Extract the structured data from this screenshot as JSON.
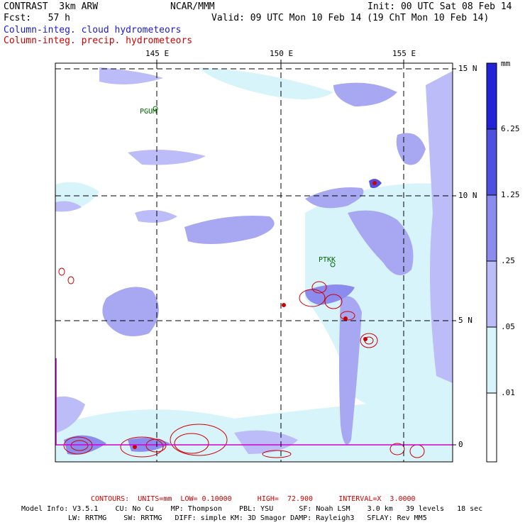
{
  "header": {
    "left_line1": "CONTRAST  3km ARW",
    "left_line2": "Fcst:   57 h",
    "center_line1": "NCAR/MMM",
    "init": "Init: 00 UTC Sat 08 Feb 14",
    "valid": "Valid: 09 UTC Mon 10 Feb 14 (19 ChT Mon 10 Feb 14)",
    "legend_cloud": "Column-integ. cloud hydrometeors",
    "legend_precip": "Column-integ. precip. hydrometeors"
  },
  "map": {
    "lon_labels": [
      "145 E",
      "150 E",
      "155 E"
    ],
    "lat_labels": [
      "15 N",
      "10 N",
      "5 N",
      "0"
    ],
    "stations": [
      {
        "name": "PGUM"
      },
      {
        "name": "PTKK"
      }
    ]
  },
  "colorbar": {
    "unit": "mm",
    "levels": [
      "6.25",
      "1.25",
      ".25",
      ".05",
      ".01"
    ],
    "colors": [
      "#2222d8",
      "#5050e0",
      "#8c8cee",
      "#bcbcf8",
      "#d8f4fb",
      "#ffffff"
    ]
  },
  "footer": {
    "contours": "CONTOURS:  UNITS=mm  LOW= 0.10000      HIGH=  72.900      INTERVAL=X  3.0000",
    "model_line1": "Model Info: V3.5.1    CU: No Cu    MP: Thompson    PBL: YSU      SF: Noah LSM    3.0 km   39 levels   18 sec",
    "model_line2": "LW: RRTMG    SW: RRTMG   DIFF: simple KM: 3D Smagor DAMP: Rayleigh3   SFLAY: Rev MM5"
  }
}
